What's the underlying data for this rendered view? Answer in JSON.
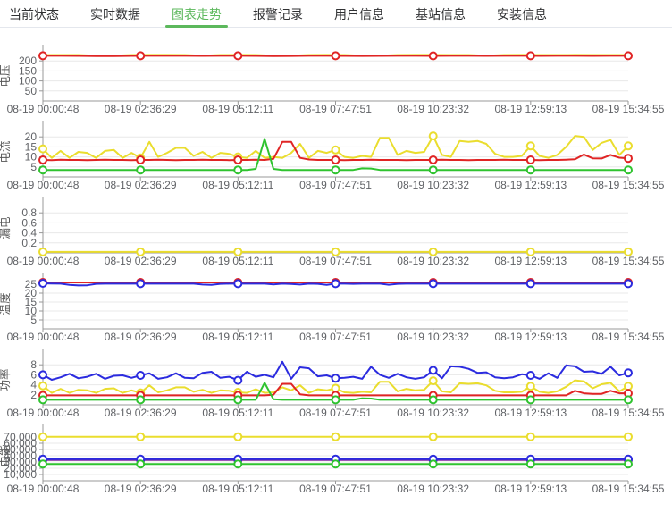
{
  "tabs": [
    {
      "label": "当前状态",
      "active": false
    },
    {
      "label": "实时数据",
      "active": false
    },
    {
      "label": "图表走势",
      "active": true
    },
    {
      "label": "报警记录",
      "active": false
    },
    {
      "label": "用户信息",
      "active": false
    },
    {
      "label": "基站信息",
      "active": false
    },
    {
      "label": "安装信息",
      "active": false
    }
  ],
  "theme": {
    "active_tab_color": "#5cb85c",
    "tab_text_color": "#303133",
    "grid_color": "#e8e8e8",
    "axis_color": "#999999",
    "tick_text_color": "#606266",
    "background": "#ffffff",
    "separator_color": "#dcdcdc"
  },
  "x_axis": {
    "labels": [
      "08-19 00:00:48",
      "08-19 02:36:29",
      "08-19 05:12:11",
      "08-19 07:47:51",
      "08-19 10:23:32",
      "08-19 12:59:13",
      "08-19 15:34:55"
    ]
  },
  "chart_data": [
    {
      "name": "voltage-trend-chart",
      "type": "line",
      "axis_title": "电压",
      "ylim": [
        0,
        250
      ],
      "y_ticks": [
        {
          "label": "50",
          "value": 50
        },
        {
          "label": "100",
          "value": 100
        },
        {
          "label": "150",
          "value": 150
        },
        {
          "label": "200",
          "value": 200
        }
      ],
      "series": [
        {
          "name": "series-yellow",
          "color": "#eadd2e",
          "markers": false,
          "values": [
            230,
            230,
            230,
            226,
            226,
            230,
            230.5,
            230.5,
            230,
            226,
            230,
            230.5,
            230,
            226,
            226,
            230,
            230.5,
            230,
            226,
            226,
            230,
            230.5,
            230.5,
            230,
            230,
            226,
            230,
            230.5,
            230,
            230,
            230.5,
            230,
            230,
            230
          ]
        },
        {
          "name": "series-red",
          "color": "#e02424",
          "values": [
            226,
            226,
            225.5,
            224.5,
            224.5,
            225.5,
            226,
            226,
            226,
            225.5,
            226,
            226,
            225.5,
            224.5,
            225,
            226,
            226,
            225.5,
            225,
            225.5,
            226,
            226,
            225.5,
            226,
            226,
            225.5,
            226,
            226,
            225.5,
            226,
            226,
            225.5,
            226,
            226
          ]
        }
      ]
    },
    {
      "name": "current-trend-chart",
      "type": "line",
      "axis_title": "电流",
      "ylim": [
        0,
        25
      ],
      "y_ticks": [
        {
          "label": "5",
          "value": 5
        },
        {
          "label": "10",
          "value": 10
        },
        {
          "label": "15",
          "value": 15
        },
        {
          "label": "20",
          "value": 20
        }
      ],
      "series": [
        {
          "name": "series-yellow",
          "color": "#eadd2e",
          "values": [
            14,
            9.5,
            13,
            9.5,
            12.5,
            12,
            9.5,
            13,
            13.5,
            9.5,
            12,
            9.5,
            17.5,
            10,
            12,
            14.5,
            14.5,
            10.5,
            12.5,
            9.5,
            12,
            11.5,
            10,
            9.5,
            13,
            9.5,
            10,
            9.5,
            12,
            16.5,
            9.5,
            13,
            12,
            13.5,
            10,
            9.5,
            10.5,
            10,
            19.5,
            19.5,
            11,
            13,
            12,
            12.5,
            20.5,
            11,
            10,
            18,
            17.5,
            18,
            16.5,
            11.5,
            10,
            10,
            10.5,
            15.5,
            10.5,
            9.5,
            11,
            15,
            20.5,
            20,
            13.5,
            17,
            18.5,
            11,
            15.5
          ]
        },
        {
          "name": "series-red",
          "color": "#e02424",
          "values": [
            8.5,
            8.4,
            8.6,
            8.5,
            8.5,
            8.4,
            8.5,
            8.6,
            8.5,
            8.5,
            8.4,
            8.5,
            8.5,
            8.6,
            8.5,
            8.4,
            8.5,
            8.5,
            8.6,
            8.5,
            8.5,
            8.4,
            8.5,
            8.5,
            8.6,
            8.5,
            9,
            17.5,
            17.5,
            9.5,
            8.7,
            8.5,
            8.5,
            8.5,
            8.4,
            8.5,
            8.5,
            8.6,
            8.5,
            8.5,
            8.5,
            8.4,
            8.5,
            8.5,
            8.5,
            8.6,
            8.5,
            8.5,
            8.4,
            8.5,
            8.5,
            8.5,
            8.6,
            8.5,
            8.5,
            8.5,
            8.4,
            8.5,
            8.5,
            8.6,
            8.8,
            11.2,
            9.3,
            9.2,
            11,
            9.6,
            9.3
          ]
        },
        {
          "name": "series-green",
          "color": "#2fc32f",
          "values": [
            3.5,
            3.5,
            3.5,
            3.5,
            3.5,
            3.5,
            3.5,
            3.5,
            3.5,
            3.5,
            3.5,
            3.5,
            3.5,
            3.5,
            3.5,
            3.5,
            3.5,
            3.5,
            3.5,
            3.5,
            3.5,
            3.5,
            3.5,
            3.5,
            4,
            19,
            4,
            3.5,
            3.5,
            3.5,
            3.5,
            3.5,
            3.5,
            3.5,
            3.5,
            3.5,
            4.3,
            4.2,
            3.5,
            3.5,
            3.5,
            3.5,
            3.5,
            3.5,
            3.5,
            3.5,
            3.5,
            3.5,
            3.5,
            3.5,
            3.5,
            3.5,
            3.5,
            3.5,
            3.5,
            3.5,
            3.5,
            3.5,
            3.5,
            3.5,
            3.5,
            3.5,
            3.5,
            3.5,
            3.5,
            3.5,
            3.5
          ]
        }
      ]
    },
    {
      "name": "leakage-trend-chart",
      "type": "line",
      "axis_title": "漏电",
      "ylim": [
        0,
        1
      ],
      "y_ticks": [
        {
          "label": "0.2",
          "value": 0.2
        },
        {
          "label": "0.4",
          "value": 0.4
        },
        {
          "label": "0.6",
          "value": 0.6
        },
        {
          "label": "0.8",
          "value": 0.8
        }
      ],
      "series": [
        {
          "name": "series-yellow",
          "color": "#eadd2e",
          "values": [
            0.02,
            0.02
          ]
        }
      ]
    },
    {
      "name": "temperature-trend-chart",
      "type": "line",
      "axis_title": "温度",
      "ylim": [
        0,
        28
      ],
      "y_ticks": [
        {
          "label": "5",
          "value": 5
        },
        {
          "label": "10",
          "value": 10
        },
        {
          "label": "15",
          "value": 15
        },
        {
          "label": "20",
          "value": 20
        },
        {
          "label": "25",
          "value": 25
        }
      ],
      "series": [
        {
          "name": "series-red",
          "color": "#e02424",
          "values": [
            26,
            26
          ]
        },
        {
          "name": "series-blue",
          "color": "#2b2bdf",
          "values": [
            25.5,
            25.4,
            25.3,
            24.6,
            24.3,
            24.4,
            25.2,
            25.3,
            25.3,
            25.3,
            25.3,
            25.3,
            25.3,
            25.3,
            25.3,
            25.3,
            25.3,
            25.3,
            24.8,
            24.6,
            25.2,
            25.3,
            25.3,
            25.3,
            25.3,
            25.3,
            24.9,
            25.3,
            25.1,
            24.8,
            25.3,
            25.2,
            24.6,
            25.3,
            25.3,
            25.2,
            25.3,
            25.3,
            25.3,
            24.7,
            25.2,
            25.3,
            25.3,
            25.3,
            25.3,
            25.3,
            25.3,
            25.3,
            25.3,
            25.3,
            25.3,
            25.3,
            25.3,
            25.3,
            25.3,
            25.3,
            25.3,
            25.3,
            25.3,
            25.3,
            25.3,
            25.3,
            25.3,
            25.3,
            25.3,
            25.3,
            25.3
          ]
        }
      ]
    },
    {
      "name": "power-trend-chart",
      "type": "line",
      "axis_title": "功率",
      "ylim": [
        0,
        10
      ],
      "y_ticks": [
        {
          "label": "2",
          "value": 2
        },
        {
          "label": "4",
          "value": 4
        },
        {
          "label": "6",
          "value": 6
        },
        {
          "label": "8",
          "value": 8
        }
      ],
      "series": [
        {
          "name": "series-blue",
          "color": "#2b2bdf",
          "values": [
            6,
            5,
            5.5,
            6.2,
            5.3,
            5.6,
            6.2,
            5.2,
            5.8,
            5.9,
            5.4,
            5.9,
            6.3,
            5.2,
            5.5,
            6.3,
            5.4,
            5.3,
            6.4,
            6.6,
            5.4,
            5.6,
            4.9,
            6.6,
            5.6,
            6,
            5.5,
            8.6,
            5.2,
            7.5,
            7.3,
            5.7,
            5.9,
            5.3,
            5.4,
            5.6,
            5.2,
            7.6,
            6,
            5.4,
            6.2,
            5.5,
            5.2,
            5.5,
            6.9,
            5.3,
            7.7,
            7.6,
            7.2,
            6.4,
            6.5,
            5.5,
            5.3,
            5.5,
            6.1,
            5.9,
            5.2,
            6.3,
            5.4,
            7.9,
            7.7,
            6.6,
            6.7,
            6.2,
            7.6,
            5.9,
            6.4
          ]
        },
        {
          "name": "series-yellow",
          "color": "#eadd2e",
          "values": [
            3.8,
            2.4,
            3.2,
            2.4,
            3,
            2.9,
            2.4,
            3.2,
            3.3,
            2.4,
            2.9,
            2.4,
            3.9,
            2.5,
            2.9,
            3.5,
            3.5,
            2.6,
            3,
            2.4,
            2.9,
            2.8,
            2.5,
            2.4,
            3.1,
            2.4,
            2.5,
            3.5,
            2.9,
            3.9,
            2.4,
            3.1,
            2.9,
            3.3,
            2.5,
            2.4,
            2.6,
            2.5,
            4.6,
            4.6,
            2.7,
            3.2,
            2.9,
            3,
            4.8,
            2.7,
            2.5,
            4.3,
            4.2,
            4.3,
            3.9,
            2.8,
            2.5,
            2.5,
            2.6,
            3.7,
            2.6,
            2.4,
            2.7,
            3.6,
            4.9,
            4.7,
            3.3,
            4.1,
            4.4,
            2.7,
            3.7
          ]
        },
        {
          "name": "series-red",
          "color": "#e02424",
          "values": [
            1.9,
            1.9,
            1.9,
            1.9,
            1.9,
            1.9,
            1.9,
            1.9,
            1.9,
            1.9,
            1.9,
            1.9,
            1.9,
            1.9,
            1.9,
            1.9,
            1.9,
            1.9,
            1.9,
            1.9,
            1.9,
            1.9,
            1.9,
            1.9,
            1.9,
            1.9,
            2,
            4.2,
            4.2,
            2.1,
            1.9,
            1.9,
            1.9,
            1.9,
            1.9,
            1.9,
            1.9,
            1.9,
            1.9,
            1.9,
            1.9,
            1.9,
            1.9,
            1.9,
            1.9,
            1.9,
            1.9,
            1.9,
            1.9,
            1.9,
            1.9,
            1.9,
            1.9,
            1.9,
            1.9,
            1.9,
            1.9,
            1.9,
            1.9,
            1.9,
            2.8,
            2.3,
            2.2,
            2.2,
            2.8,
            2.3,
            2.3
          ]
        },
        {
          "name": "series-green",
          "color": "#2fc32f",
          "values": [
            1,
            1,
            1,
            1,
            1,
            1,
            1,
            1,
            1,
            1,
            1,
            1,
            1,
            1,
            1,
            1,
            1,
            1,
            1,
            1,
            1,
            1,
            1,
            1,
            1,
            4.4,
            1.1,
            1,
            1,
            1,
            1,
            1,
            1,
            1,
            1,
            1,
            1.3,
            1.25,
            1,
            1,
            1,
            1,
            1,
            1,
            1,
            1,
            1,
            1,
            1,
            1,
            1,
            1,
            1,
            1,
            1,
            1,
            1,
            1,
            1,
            1,
            1,
            1,
            1,
            1,
            1,
            1,
            1
          ]
        }
      ]
    },
    {
      "name": "energy-trend-chart",
      "type": "line",
      "axis_title": "电能",
      "ylim": [
        0,
        80000
      ],
      "y_ticks": [
        {
          "label": "10,000",
          "value": 10000
        },
        {
          "label": "20,000",
          "value": 20000
        },
        {
          "label": "30,000",
          "value": 30000
        },
        {
          "label": "40,000",
          "value": 40000
        },
        {
          "label": "50,000",
          "value": 50000
        },
        {
          "label": "60,000",
          "value": 60000
        },
        {
          "label": "70,000",
          "value": 70000
        }
      ],
      "series": [
        {
          "name": "series-purple",
          "color": "#7b1fa2",
          "values": [
            33200,
            33200
          ]
        },
        {
          "name": "series-blue",
          "color": "#2b2bdf",
          "values": [
            34600,
            34600
          ]
        },
        {
          "name": "series-green",
          "color": "#2fc32f",
          "values": [
            26800,
            26800
          ]
        },
        {
          "name": "series-yellow",
          "color": "#eadd2e",
          "values": [
            70300,
            70300
          ]
        }
      ]
    }
  ]
}
